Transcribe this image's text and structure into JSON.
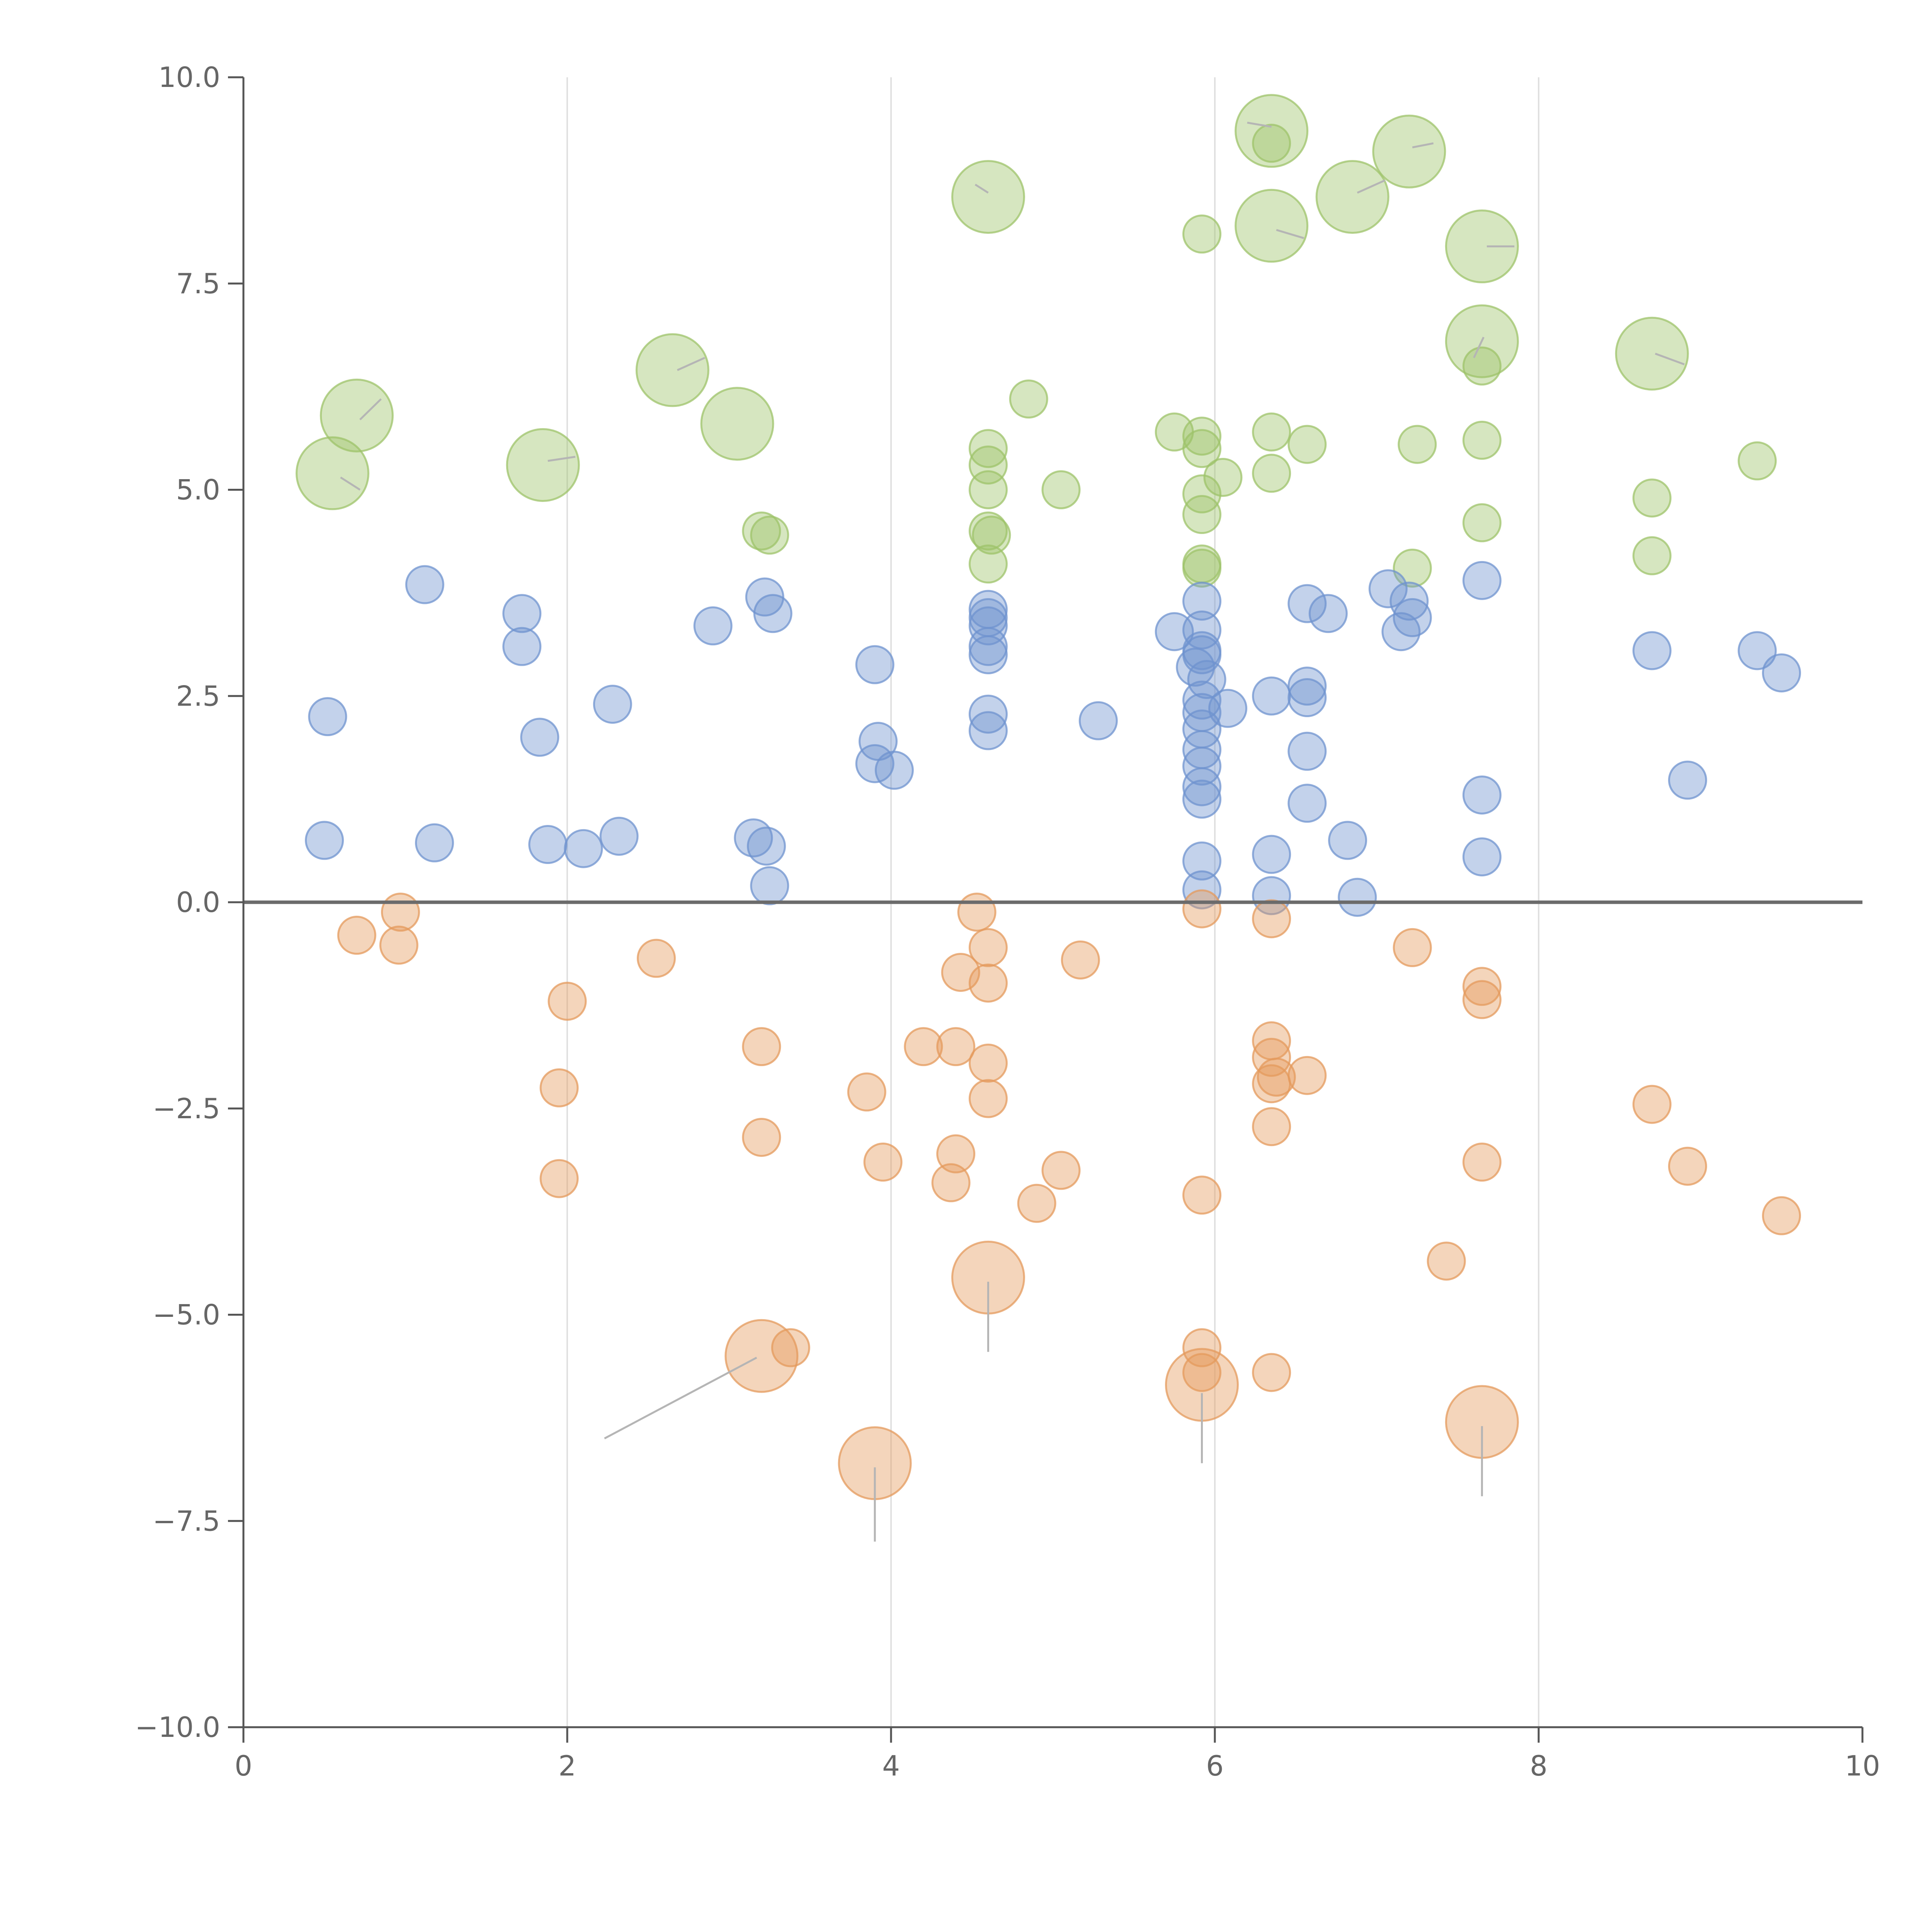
{
  "colors": {
    "green": "#9dc36a",
    "blue": "#6f93cf",
    "orange": "#e49a5c",
    "axis": "#555555",
    "grid": "#e0e0e0",
    "text": "#666666"
  },
  "chart_data": {
    "type": "scatter",
    "title": "",
    "xlabel": "",
    "ylabel": "",
    "xlim": [
      0,
      10
    ],
    "ylim": [
      -10,
      10
    ],
    "x_ticks": [
      "0",
      "2",
      "4",
      "6",
      "8",
      "10"
    ],
    "y_ticks": [
      "10.0",
      "7.5",
      "5.0",
      "2.5",
      "0.0",
      "−2.5",
      "−5.0",
      "−7.5",
      "−10.0"
    ],
    "x_tick_values": [
      0,
      2,
      4,
      6,
      8,
      10
    ],
    "y_tick_values": [
      10,
      7.5,
      5,
      2.5,
      0,
      -2.5,
      -5,
      -7.5,
      -10
    ],
    "grid_x": [
      2,
      4,
      6,
      8
    ],
    "zero_line": 0,
    "series": [
      {
        "name": "green",
        "color": "green",
        "points": [
          [
            0.55,
            5.2,
            2
          ],
          [
            0.7,
            5.9,
            2
          ],
          [
            1.85,
            5.3,
            2
          ],
          [
            2.65,
            6.45,
            2
          ],
          [
            3.05,
            5.8,
            2
          ],
          [
            4.6,
            8.55,
            2
          ],
          [
            6.35,
            9.35,
            2
          ],
          [
            6.35,
            8.2,
            2
          ],
          [
            6.85,
            8.55,
            2
          ],
          [
            7.2,
            9.1,
            2
          ],
          [
            7.65,
            7.95,
            2
          ],
          [
            7.65,
            6.8,
            2
          ],
          [
            8.7,
            6.65,
            2
          ],
          [
            3.2,
            4.5,
            1
          ],
          [
            3.25,
            4.45,
            1
          ],
          [
            4.6,
            5.5,
            1
          ],
          [
            4.6,
            5.3,
            1
          ],
          [
            4.6,
            5.0,
            1
          ],
          [
            4.6,
            4.5,
            1
          ],
          [
            4.62,
            4.45,
            1
          ],
          [
            4.6,
            4.1,
            1
          ],
          [
            4.85,
            6.1,
            1
          ],
          [
            5.05,
            5.0,
            1
          ],
          [
            5.75,
            5.7,
            1
          ],
          [
            5.92,
            5.65,
            1
          ],
          [
            5.92,
            5.5,
            1
          ],
          [
            5.92,
            4.95,
            1
          ],
          [
            5.92,
            4.7,
            1
          ],
          [
            5.92,
            4.1,
            1
          ],
          [
            5.92,
            4.05,
            1
          ],
          [
            6.05,
            5.15,
            1
          ],
          [
            5.92,
            8.1,
            1
          ],
          [
            6.35,
            9.2,
            1
          ],
          [
            6.35,
            5.7,
            1
          ],
          [
            6.35,
            5.2,
            1
          ],
          [
            6.57,
            5.55,
            1
          ],
          [
            7.22,
            4.05,
            1
          ],
          [
            7.25,
            5.55,
            1
          ],
          [
            7.65,
            6.5,
            1
          ],
          [
            7.65,
            5.6,
            1
          ],
          [
            7.65,
            4.6,
            1
          ],
          [
            8.7,
            4.9,
            1
          ],
          [
            8.7,
            4.2,
            1
          ],
          [
            9.35,
            5.35,
            1
          ]
        ]
      },
      {
        "name": "blue",
        "color": "blue",
        "points": [
          [
            0.52,
            2.25,
            1
          ],
          [
            0.5,
            0.75,
            1
          ],
          [
            1.12,
            3.85,
            1
          ],
          [
            1.18,
            0.72,
            1
          ],
          [
            1.72,
            3.5,
            1
          ],
          [
            1.72,
            3.1,
            1
          ],
          [
            1.83,
            2.0,
            1
          ],
          [
            1.88,
            0.7,
            1
          ],
          [
            2.1,
            0.65,
            1
          ],
          [
            2.28,
            2.4,
            1
          ],
          [
            2.32,
            0.8,
            1
          ],
          [
            2.9,
            3.35,
            1
          ],
          [
            3.15,
            0.78,
            1
          ],
          [
            3.22,
            3.7,
            1
          ],
          [
            3.27,
            3.5,
            1
          ],
          [
            3.23,
            0.68,
            1
          ],
          [
            3.25,
            0.2,
            1
          ],
          [
            3.9,
            2.88,
            1
          ],
          [
            3.92,
            1.95,
            1
          ],
          [
            3.9,
            1.68,
            1
          ],
          [
            4.02,
            1.6,
            1
          ],
          [
            4.6,
            3.55,
            1
          ],
          [
            4.6,
            3.45,
            1
          ],
          [
            4.6,
            3.35,
            1
          ],
          [
            4.6,
            3.1,
            1
          ],
          [
            4.6,
            3.0,
            1
          ],
          [
            4.6,
            2.28,
            1
          ],
          [
            4.6,
            2.08,
            1
          ],
          [
            5.28,
            2.2,
            1
          ],
          [
            5.75,
            3.28,
            1
          ],
          [
            5.92,
            3.65,
            1
          ],
          [
            5.92,
            3.3,
            1
          ],
          [
            5.92,
            3.05,
            1
          ],
          [
            5.92,
            3.0,
            1
          ],
          [
            5.88,
            2.85,
            1
          ],
          [
            5.95,
            2.7,
            1
          ],
          [
            5.92,
            2.45,
            1
          ],
          [
            5.92,
            2.3,
            1
          ],
          [
            6.08,
            2.35,
            1
          ],
          [
            5.92,
            2.1,
            1
          ],
          [
            5.92,
            1.85,
            1
          ],
          [
            5.92,
            1.65,
            1
          ],
          [
            5.92,
            1.4,
            1
          ],
          [
            5.92,
            1.25,
            1
          ],
          [
            5.92,
            0.5,
            1
          ],
          [
            5.92,
            0.15,
            1
          ],
          [
            6.35,
            2.5,
            1
          ],
          [
            6.35,
            0.58,
            1
          ],
          [
            6.35,
            0.08,
            1
          ],
          [
            6.57,
            3.62,
            1
          ],
          [
            6.57,
            2.62,
            1
          ],
          [
            6.57,
            2.48,
            1
          ],
          [
            6.57,
            1.83,
            1
          ],
          [
            6.57,
            1.2,
            1
          ],
          [
            6.7,
            3.5,
            1
          ],
          [
            6.82,
            0.75,
            1
          ],
          [
            6.88,
            0.06,
            1
          ],
          [
            7.07,
            3.8,
            1
          ],
          [
            7.15,
            3.28,
            1
          ],
          [
            7.2,
            3.65,
            1
          ],
          [
            7.22,
            3.45,
            1
          ],
          [
            7.65,
            3.9,
            1
          ],
          [
            7.65,
            1.3,
            1
          ],
          [
            7.65,
            0.55,
            1
          ],
          [
            8.7,
            3.05,
            1
          ],
          [
            8.92,
            1.48,
            1
          ],
          [
            9.35,
            3.05,
            1
          ],
          [
            9.5,
            2.78,
            1
          ]
        ]
      },
      {
        "name": "orange",
        "color": "orange",
        "points": [
          [
            0.7,
            -0.4,
            1
          ],
          [
            0.97,
            -0.12,
            1
          ],
          [
            0.96,
            -0.52,
            1
          ],
          [
            2.0,
            -1.2,
            1
          ],
          [
            1.95,
            -2.25,
            1
          ],
          [
            1.95,
            -3.35,
            1
          ],
          [
            2.55,
            -0.68,
            1
          ],
          [
            3.2,
            -1.75,
            1
          ],
          [
            3.2,
            -2.85,
            1
          ],
          [
            3.38,
            -5.4,
            1
          ],
          [
            3.85,
            -2.3,
            1
          ],
          [
            3.95,
            -3.15,
            1
          ],
          [
            4.2,
            -1.75,
            1
          ],
          [
            4.4,
            -1.75,
            1
          ],
          [
            4.43,
            -0.85,
            1
          ],
          [
            4.4,
            -3.05,
            1
          ],
          [
            4.37,
            -3.4,
            1
          ],
          [
            4.53,
            -0.12,
            1
          ],
          [
            4.6,
            -0.55,
            1
          ],
          [
            4.6,
            -0.98,
            1
          ],
          [
            4.6,
            -1.95,
            1
          ],
          [
            4.6,
            -2.38,
            1
          ],
          [
            4.9,
            -3.65,
            1
          ],
          [
            5.05,
            -3.25,
            1
          ],
          [
            5.17,
            -0.7,
            1
          ],
          [
            5.92,
            -0.08,
            1
          ],
          [
            5.92,
            -3.55,
            1
          ],
          [
            5.92,
            -5.4,
            1
          ],
          [
            5.92,
            -5.7,
            1
          ],
          [
            6.35,
            -0.2,
            1
          ],
          [
            6.35,
            -1.68,
            1
          ],
          [
            6.35,
            -1.88,
            1
          ],
          [
            6.35,
            -2.2,
            1
          ],
          [
            6.38,
            -2.12,
            1
          ],
          [
            6.57,
            -2.1,
            1
          ],
          [
            6.35,
            -2.72,
            1
          ],
          [
            6.35,
            -5.7,
            1
          ],
          [
            7.22,
            -0.55,
            1
          ],
          [
            7.43,
            -4.35,
            1
          ],
          [
            7.65,
            -1.02,
            1
          ],
          [
            7.65,
            -1.18,
            1
          ],
          [
            7.65,
            -3.15,
            1
          ],
          [
            8.7,
            -2.45,
            1
          ],
          [
            8.92,
            -3.2,
            1
          ],
          [
            9.5,
            -3.8,
            1
          ],
          [
            3.2,
            -5.5,
            2
          ],
          [
            3.9,
            -6.8,
            2
          ],
          [
            4.6,
            -4.55,
            2
          ],
          [
            5.92,
            -5.85,
            2
          ],
          [
            7.65,
            -6.3,
            2
          ]
        ]
      }
    ],
    "leader_lines": [
      {
        "from": [
          3.17,
          -5.52
        ],
        "to": [
          2.23,
          -6.5
        ],
        "color": "grey"
      },
      {
        "from": [
          3.9,
          -6.85
        ],
        "to": [
          3.9,
          -7.75
        ],
        "color": "grey"
      },
      {
        "from": [
          4.6,
          -4.6
        ],
        "to": [
          4.6,
          -5.45
        ],
        "color": "grey"
      },
      {
        "from": [
          5.92,
          -5.95
        ],
        "to": [
          5.92,
          -6.8
        ],
        "color": "grey"
      },
      {
        "from": [
          7.65,
          -6.35
        ],
        "to": [
          7.65,
          -7.2
        ],
        "color": "grey"
      },
      {
        "from": [
          0.72,
          5.85
        ],
        "to": [
          0.85,
          6.1
        ],
        "color": "white"
      },
      {
        "from": [
          0.6,
          5.15
        ],
        "to": [
          0.72,
          5.0
        ],
        "color": "white"
      },
      {
        "from": [
          1.88,
          5.35
        ],
        "to": [
          2.05,
          5.4
        ],
        "color": "white"
      },
      {
        "from": [
          2.68,
          6.45
        ],
        "to": [
          2.85,
          6.6
        ],
        "color": "white"
      },
      {
        "from": [
          4.6,
          8.6
        ],
        "to": [
          4.52,
          8.7
        ],
        "color": "white"
      },
      {
        "from": [
          6.35,
          9.4
        ],
        "to": [
          6.2,
          9.45
        ],
        "color": "white"
      },
      {
        "from": [
          6.38,
          8.15
        ],
        "to": [
          6.55,
          8.05
        ],
        "color": "white"
      },
      {
        "from": [
          6.88,
          8.6
        ],
        "to": [
          7.05,
          8.75
        ],
        "color": "white"
      },
      {
        "from": [
          7.22,
          9.15
        ],
        "to": [
          7.35,
          9.2
        ],
        "color": "white"
      },
      {
        "from": [
          7.68,
          7.95
        ],
        "to": [
          7.85,
          7.95
        ],
        "color": "white"
      },
      {
        "from": [
          7.66,
          6.85
        ],
        "to": [
          7.6,
          6.6
        ],
        "color": "white"
      },
      {
        "from": [
          8.72,
          6.65
        ],
        "to": [
          8.9,
          6.52
        ],
        "color": "white"
      }
    ]
  }
}
